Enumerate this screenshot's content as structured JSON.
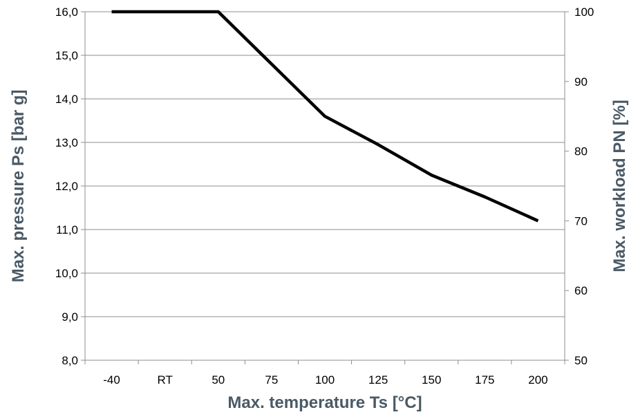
{
  "chart_data": {
    "type": "line",
    "categories": [
      "-40",
      "RT",
      "50",
      "75",
      "100",
      "125",
      "150",
      "175",
      "200"
    ],
    "series": [
      {
        "values": [
          16.0,
          16.0,
          16.0,
          14.8,
          13.6,
          12.95,
          12.25,
          11.75,
          11.2
        ]
      }
    ],
    "xlabel": "Max. temperature Ts [°C]",
    "ylabel": "Max. pressure Ps [bar g]",
    "ylabel_right": "Max. workload PN [%]",
    "ylim": [
      8,
      16
    ],
    "yticks": [
      "8,0",
      "9,0",
      "10,0",
      "11,0",
      "12,0",
      "13,0",
      "14,0",
      "15,0",
      "16,0"
    ],
    "ylim_right": [
      50,
      100
    ],
    "yticks_right": [
      "50",
      "60",
      "70",
      "80",
      "90",
      "100"
    ],
    "grid": "horizontal",
    "colors": {
      "line": "#000000",
      "axis_title": "#4a5a66",
      "grid": "#8c8c8c"
    }
  }
}
